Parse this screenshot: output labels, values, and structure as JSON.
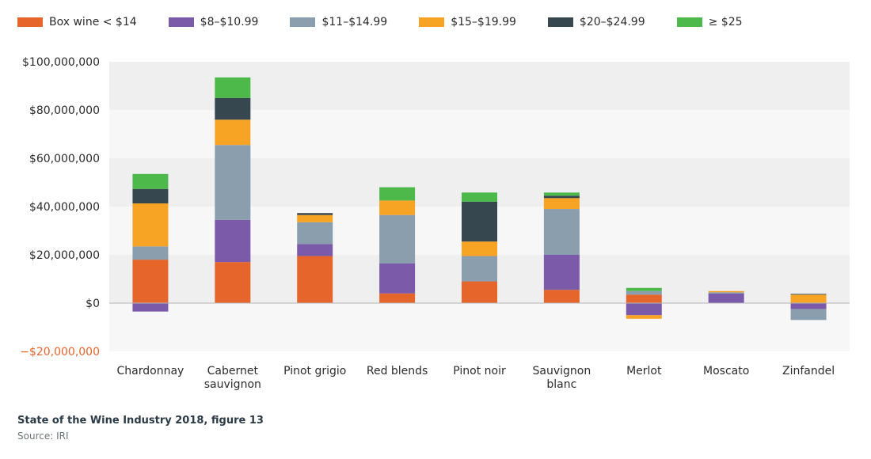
{
  "chart_data": {
    "type": "bar",
    "stacked": true,
    "categories": [
      "Chardonnay",
      "Cabernet\nsauvignon",
      "Pinot grigio",
      "Red blends",
      "Pinot noir",
      "Sauvignon\nblanc",
      "Merlot",
      "Moscato",
      "Zinfandel"
    ],
    "series": [
      {
        "name": "Box wine < $14",
        "color": "#e5652a",
        "values": [
          18000000,
          17000000,
          19500000,
          4000000,
          9000000,
          5500000,
          3500000,
          0,
          0
        ]
      },
      {
        "name": "$8–$10.99",
        "color": "#7b5aaa",
        "values": [
          -3500000,
          17500000,
          5000000,
          12500000,
          0,
          14500000,
          -5000000,
          4000000,
          -2500000
        ]
      },
      {
        "name": "$11–$14.99",
        "color": "#8a9eae",
        "values": [
          5500000,
          31000000,
          9000000,
          20000000,
          10500000,
          19000000,
          1500000,
          500000,
          -4500000
        ]
      },
      {
        "name": "$15–$19.99",
        "color": "#f7a324",
        "values": [
          17800000,
          10500000,
          3000000,
          6000000,
          6000000,
          4500000,
          -1500000,
          500000,
          3500000
        ]
      },
      {
        "name": "$20–$24.99",
        "color": "#37474f",
        "values": [
          6000000,
          9000000,
          800000,
          0,
          16500000,
          1000000,
          0,
          0,
          300000
        ]
      },
      {
        "name": "≥ $25",
        "color": "#4cb94a",
        "values": [
          6200000,
          8500000,
          0,
          5500000,
          3800000,
          1300000,
          1300000,
          0,
          0
        ]
      }
    ],
    "ylim": [
      -20000000,
      100000000
    ],
    "yticks": [
      100000000,
      80000000,
      60000000,
      40000000,
      20000000,
      0,
      -20000000
    ],
    "ytick_labels": [
      "$100,000,000",
      "$80,000,000",
      "$60,000,000",
      "$40,000,000",
      "$20,000,000",
      "$0",
      "−$20,000,000"
    ],
    "negative_tick_color": "#e5652a",
    "legend_position": "top-left",
    "grid": "alternating bands"
  },
  "footer": {
    "title": "State of the Wine Industry 2018, figure 13",
    "source": "Source: IRI"
  }
}
